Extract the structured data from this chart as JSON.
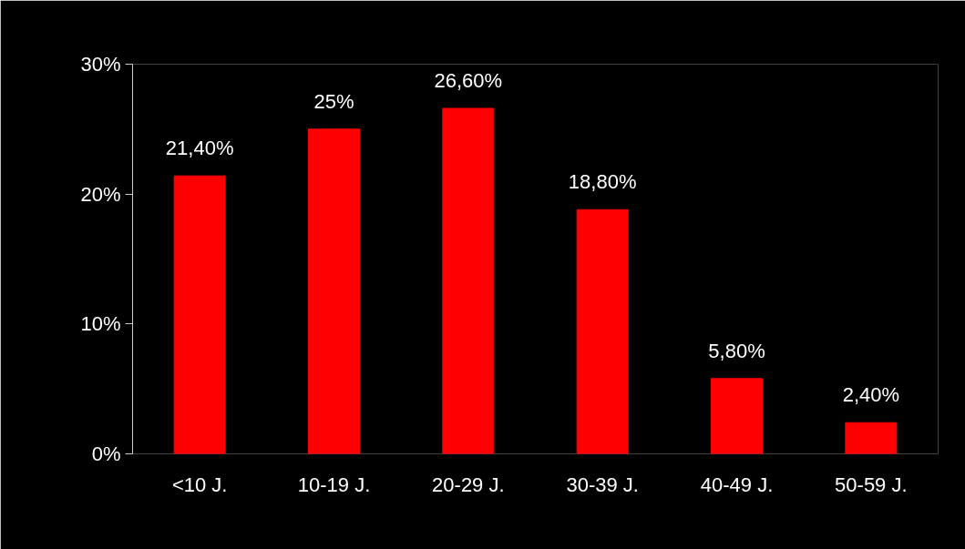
{
  "chart_data": {
    "type": "bar",
    "categories": [
      "<10 J.",
      "10-19 J.",
      "20-29 J.",
      "30-39 J.",
      "40-49 J.",
      "50-59 J."
    ],
    "values": [
      21.4,
      25,
      26.6,
      18.8,
      5.8,
      2.4
    ],
    "value_labels": [
      "21,40%",
      "25%",
      "26,60%",
      "18,80%",
      "5,80%",
      "2,40%"
    ],
    "color": "#ff0000",
    "ylim": [
      0,
      30
    ],
    "yticks": [
      {
        "value": 0,
        "label": "0%"
      },
      {
        "value": 10,
        "label": "10%"
      },
      {
        "value": 20,
        "label": "20%"
      },
      {
        "value": 30,
        "label": "30%"
      }
    ],
    "grid": false
  }
}
